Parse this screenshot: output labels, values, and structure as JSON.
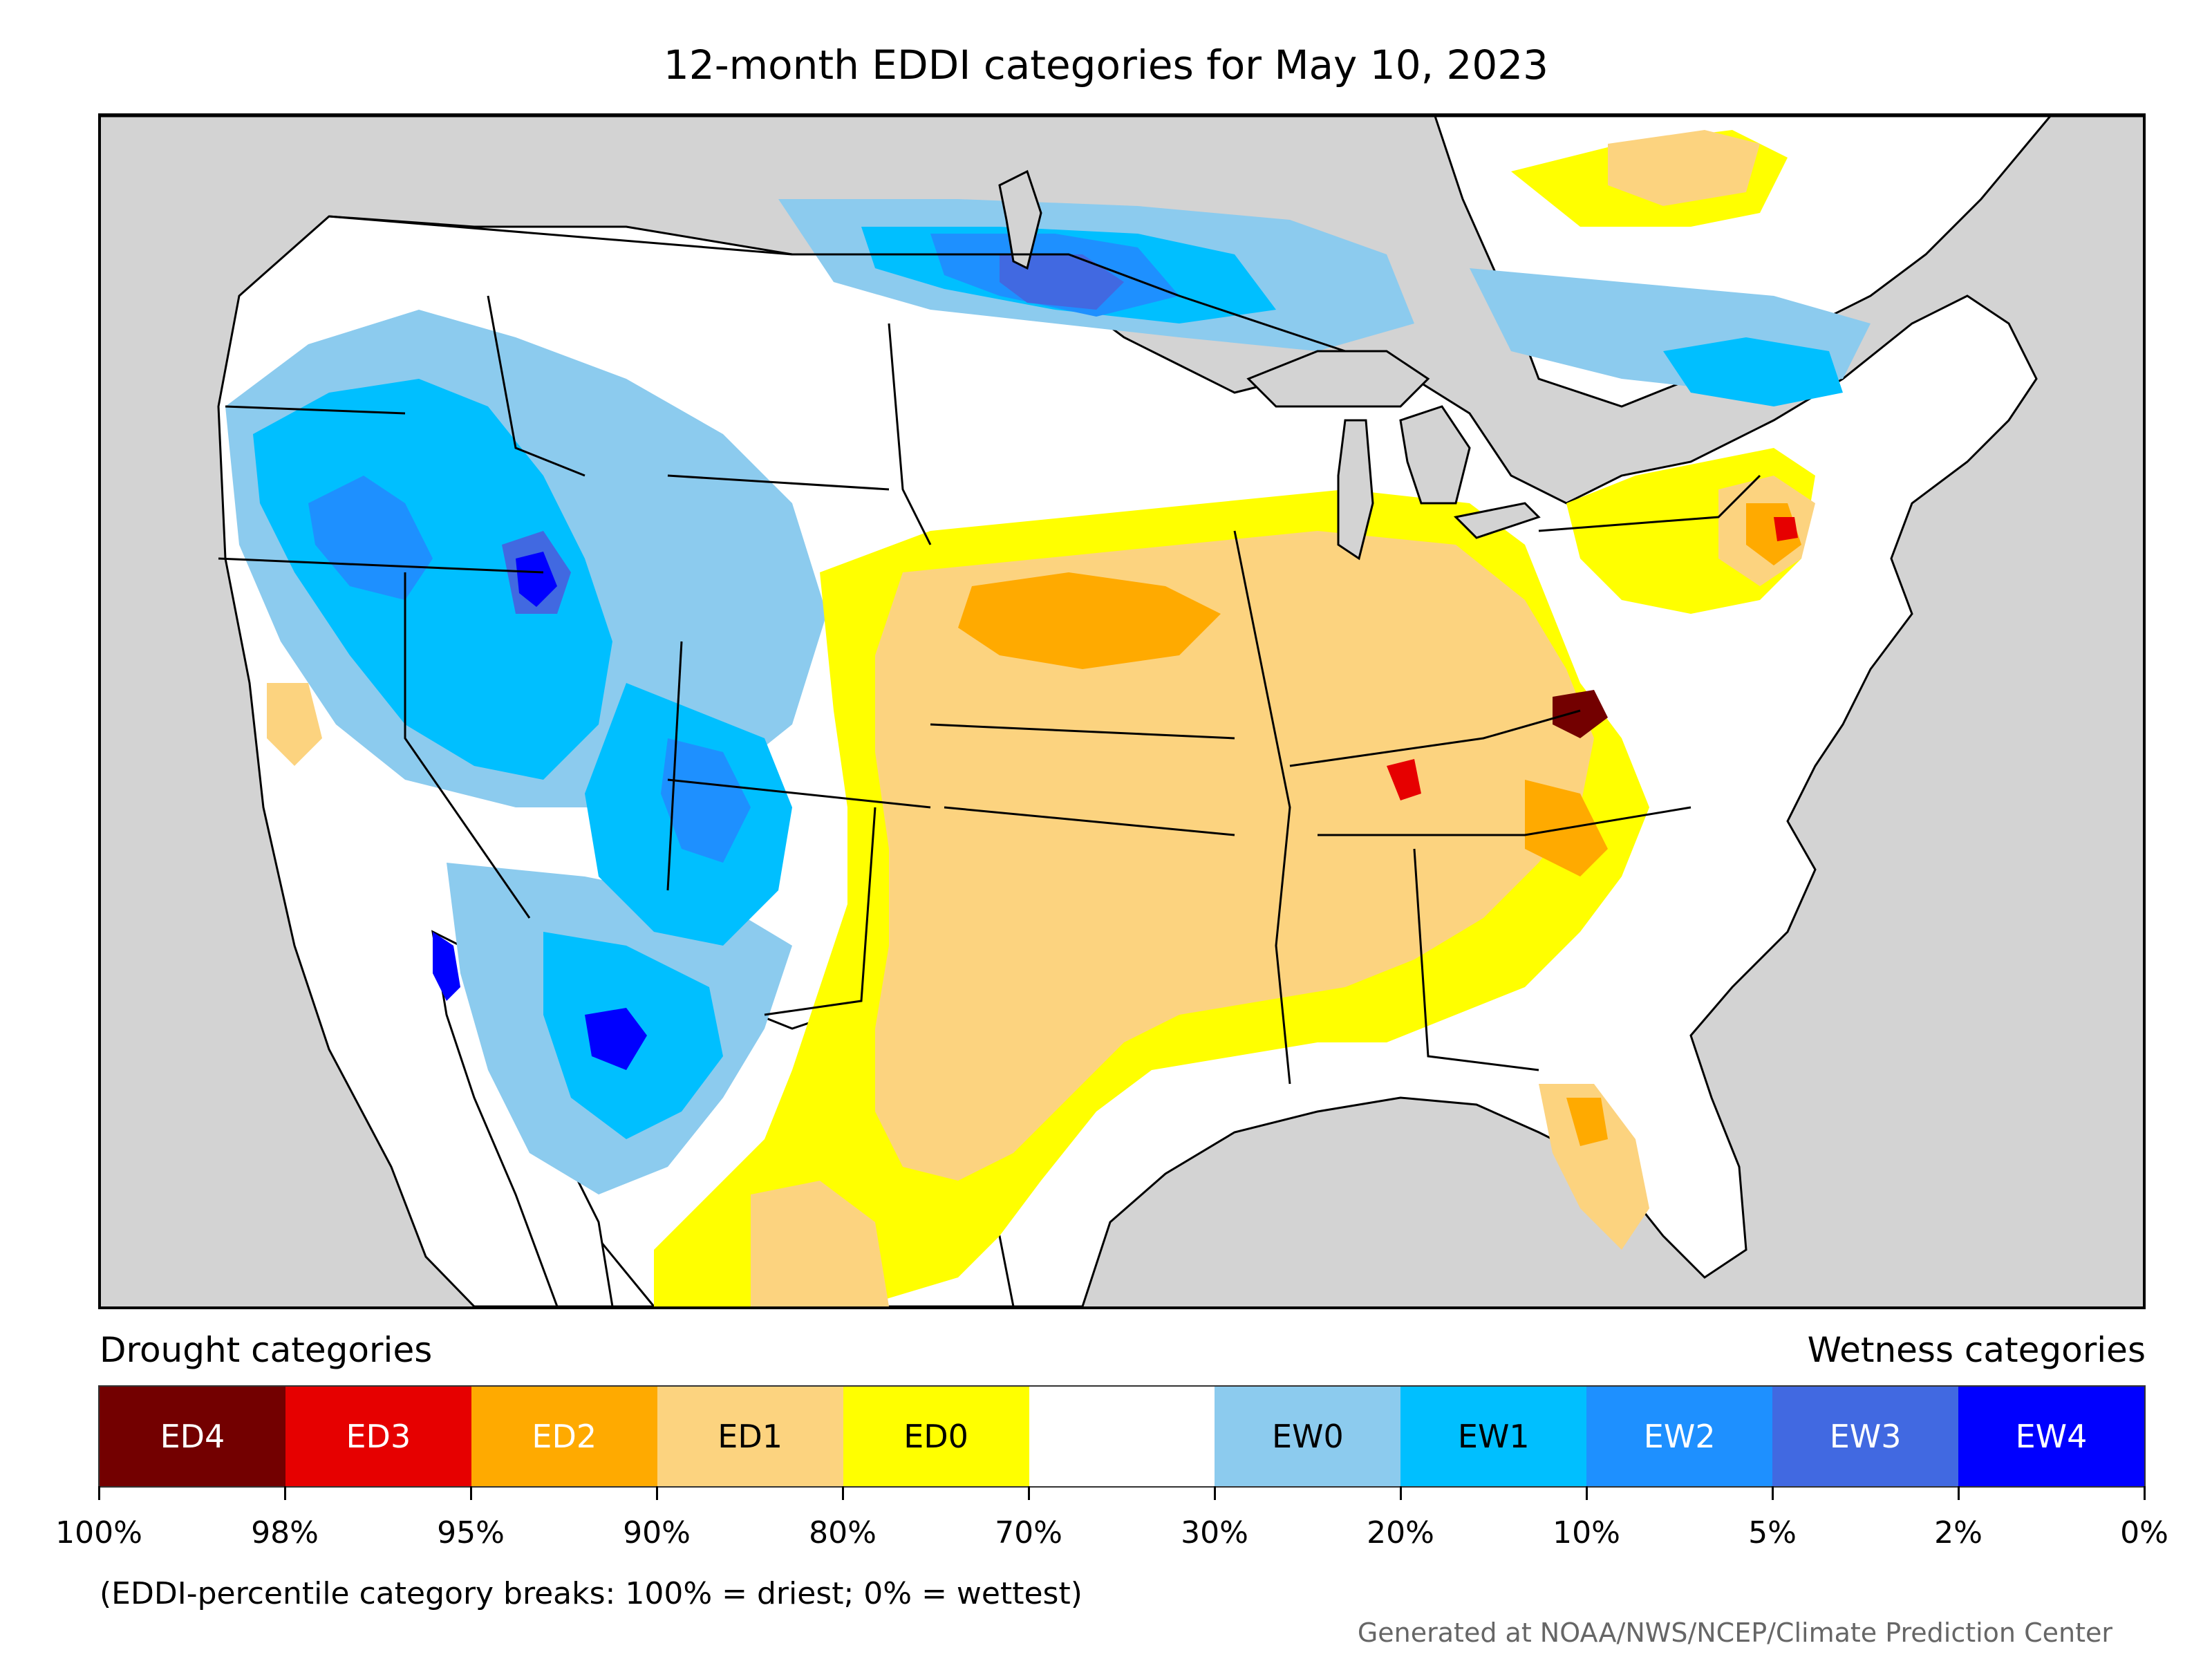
{
  "title": "12-month EDDI categories for May 10, 2023",
  "legend": {
    "drought_label": "Drought categories",
    "wetness_label": "Wetness categories",
    "categories": [
      {
        "label": "ED4",
        "color": "#730000",
        "text_color": "#ffffff"
      },
      {
        "label": "ED3",
        "color": "#e60000",
        "text_color": "#ffffff"
      },
      {
        "label": "ED2",
        "color": "#ffaa00",
        "text_color": "#ffffff"
      },
      {
        "label": "ED1",
        "color": "#fcd37f",
        "text_color": "#000000"
      },
      {
        "label": "ED0",
        "color": "#ffff00",
        "text_color": "#000000"
      },
      {
        "label": "",
        "color": "#ffffff",
        "text_color": "#000000"
      },
      {
        "label": "EW0",
        "color": "#8ccbee",
        "text_color": "#000000"
      },
      {
        "label": "EW1",
        "color": "#00bfff",
        "text_color": "#000000"
      },
      {
        "label": "EW2",
        "color": "#1e90ff",
        "text_color": "#ffffff"
      },
      {
        "label": "EW3",
        "color": "#4169e1",
        "text_color": "#ffffff"
      },
      {
        "label": "EW4",
        "color": "#0000ff",
        "text_color": "#ffffff"
      }
    ],
    "tick_labels": [
      "100%",
      "98%",
      "95%",
      "90%",
      "80%",
      "70%",
      "30%",
      "20%",
      "10%",
      "5%",
      "2%",
      "0%"
    ]
  },
  "note": "(EDDI-percentile category breaks: 100% = driest; 0% = wettest)",
  "credit": "Generated at NOAA/NWS/NCEP/Climate Prediction Center",
  "colors": {
    "ocean": "#d3d3d3",
    "land": "#ffffff",
    "border": "#000000"
  }
}
